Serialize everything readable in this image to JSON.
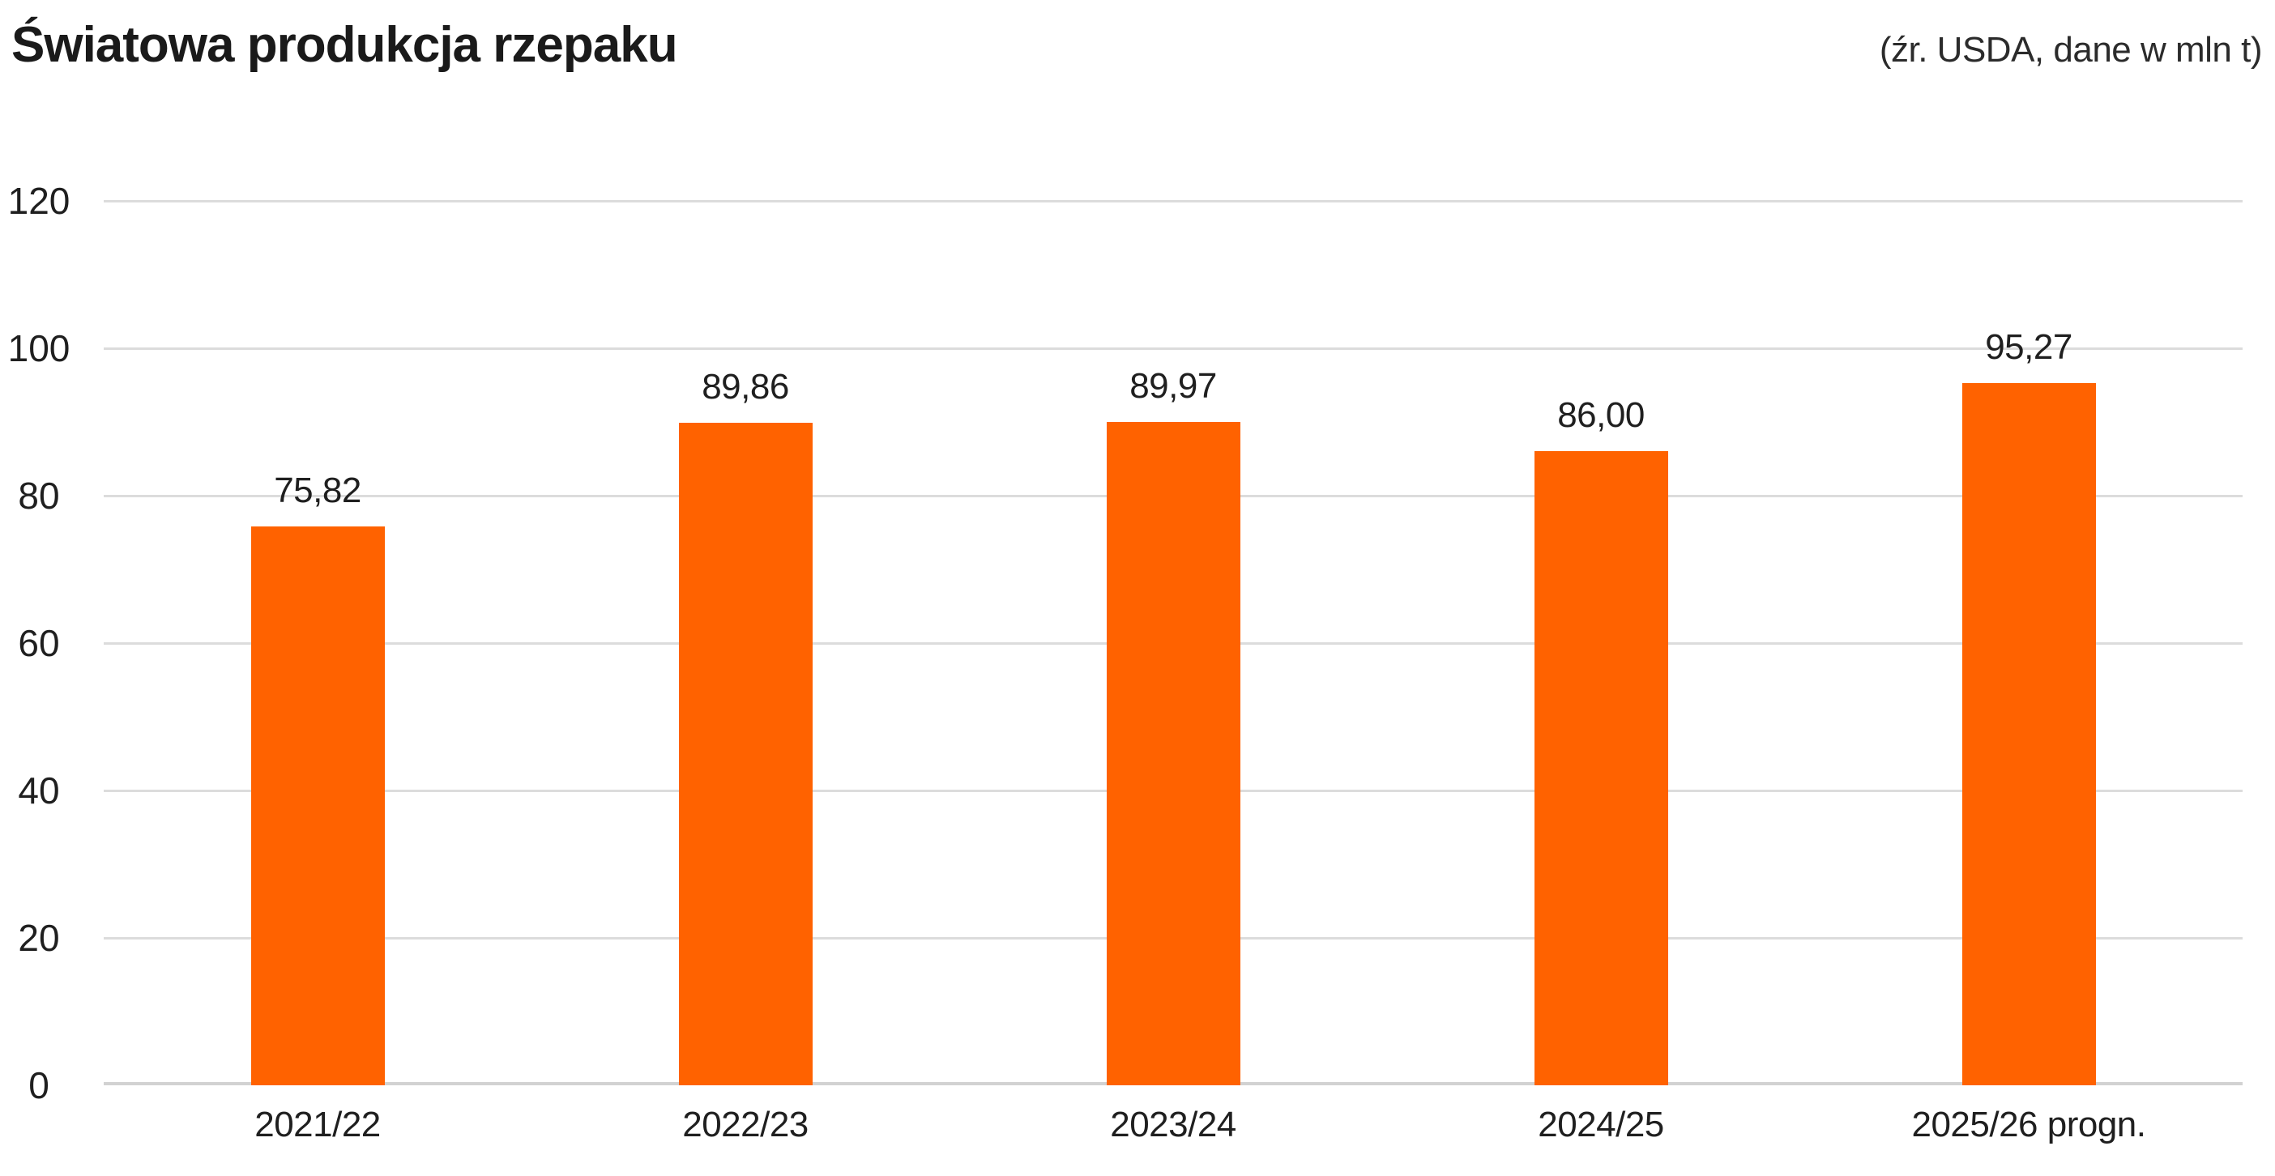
{
  "header": {
    "title": "Światowa produkcja rzepaku",
    "source_note": "(źr. USDA, dane w mln t)"
  },
  "chart_data": {
    "type": "bar",
    "title": "Światowa produkcja rzepaku",
    "subtitle": "(źr. USDA, dane w mln t)",
    "categories": [
      "2021/22",
      "2022/23",
      "2023/24",
      "2024/25",
      "2025/26 progn."
    ],
    "values": [
      75.82,
      89.86,
      89.97,
      86.0,
      95.27
    ],
    "value_labels": [
      "75,82",
      "89,86",
      "89,97",
      "86,00",
      "95,27"
    ],
    "unit": "mln t",
    "source": "USDA",
    "ylim": [
      0,
      120
    ],
    "yticks": [
      0,
      20,
      40,
      60,
      80,
      100,
      120
    ],
    "grid": "horizontal",
    "legend": "none",
    "colors": {
      "bar": "#FF6200",
      "gridline": "#dcdcdc",
      "axis_line": "#d2d2d2",
      "text": "#1f1f1f"
    }
  }
}
